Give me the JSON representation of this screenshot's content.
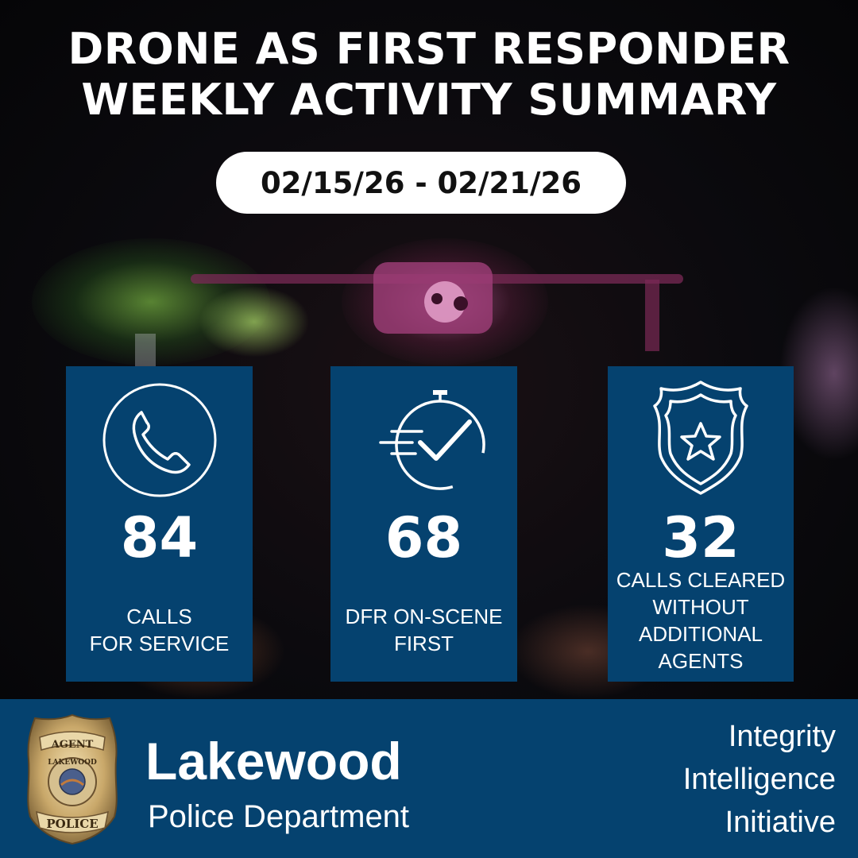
{
  "header": {
    "title_line1": "DRONE AS FIRST RESPONDER",
    "title_line2": "WEEKLY ACTIVITY SUMMARY",
    "date_range": "02/15/26 - 02/21/26"
  },
  "stats": [
    {
      "icon": "phone-icon",
      "value": "84",
      "label_line1": "CALLS",
      "label_line2": "FOR SERVICE"
    },
    {
      "icon": "stopwatch-check-icon",
      "value": "68",
      "label_line1": "DFR ON-SCENE",
      "label_line2": "FIRST"
    },
    {
      "icon": "police-badge-star-icon",
      "value": "32",
      "label_line1": "CALLS CLEARED",
      "label_line2": "WITHOUT",
      "label_line3": "ADDITIONAL",
      "label_line4": "AGENTS"
    }
  ],
  "footer": {
    "badge_text_top": "AGENT",
    "badge_text_city": "LAKEWOOD",
    "badge_text_bottom": "POLICE",
    "brand": "Lakewood",
    "department": "Police Department",
    "values": [
      "Integrity",
      "Intelligence",
      "Initiative"
    ]
  },
  "colors": {
    "card_blue": "#05426f",
    "footer_blue": "#05426f",
    "pill_white": "#ffffff"
  }
}
